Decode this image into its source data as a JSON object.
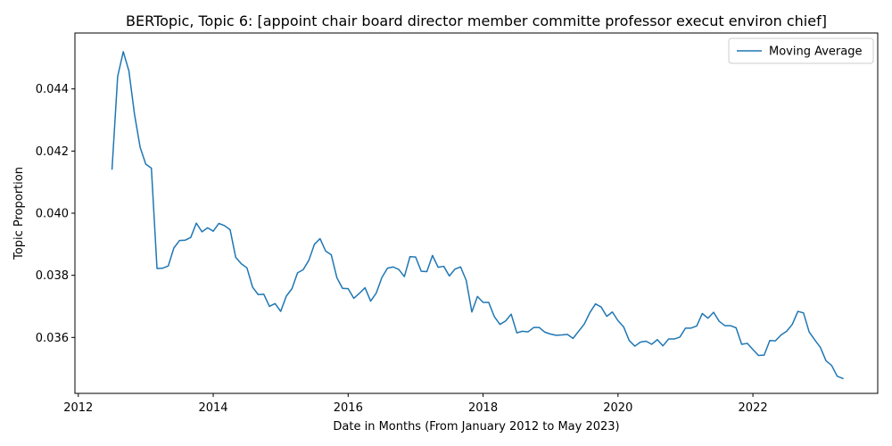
{
  "chart_data": {
    "type": "line",
    "title": "BERTopic, Topic 6: [appoint chair board director member committe professor execut environ chief]",
    "xlabel": "Date in Months (From January 2012 to May 2023)",
    "ylabel": "Topic Proportion",
    "xlim": [
      2011.95,
      2023.85
    ],
    "ylim": [
      0.0342,
      0.0458
    ],
    "xticks": [
      2012,
      2014,
      2016,
      2018,
      2020,
      2022
    ],
    "xtick_labels": [
      "2012",
      "2014",
      "2016",
      "2018",
      "2020",
      "2022"
    ],
    "yticks": [
      0.036,
      0.038,
      0.04,
      0.042,
      0.044
    ],
    "ytick_labels": [
      "0.036",
      "0.038",
      "0.040",
      "0.042",
      "0.044"
    ],
    "grid": false,
    "legend_position": "top-right",
    "line_color": "#1f77b4",
    "series": [
      {
        "name": "Moving Average",
        "x": [
          "2012-07",
          "2012-08",
          "2012-09",
          "2012-10",
          "2012-11",
          "2012-12",
          "2013-01",
          "2013-02",
          "2013-03",
          "2013-04",
          "2013-05",
          "2013-06",
          "2013-07",
          "2013-08",
          "2013-09",
          "2013-10",
          "2013-11",
          "2013-12",
          "2014-01",
          "2014-02",
          "2014-03",
          "2014-04",
          "2014-05",
          "2014-06",
          "2014-07",
          "2014-08",
          "2014-09",
          "2014-10",
          "2014-11",
          "2014-12",
          "2015-01",
          "2015-02",
          "2015-03",
          "2015-04",
          "2015-05",
          "2015-06",
          "2015-07",
          "2015-08",
          "2015-09",
          "2015-10",
          "2015-11",
          "2015-12",
          "2016-01",
          "2016-02",
          "2016-03",
          "2016-04",
          "2016-05",
          "2016-06",
          "2016-07",
          "2016-08",
          "2016-09",
          "2016-10",
          "2016-11",
          "2016-12",
          "2017-01",
          "2017-02",
          "2017-03",
          "2017-04",
          "2017-05",
          "2017-06",
          "2017-07",
          "2017-08",
          "2017-09",
          "2017-10",
          "2017-11",
          "2017-12",
          "2018-01",
          "2018-02",
          "2018-03",
          "2018-04",
          "2018-05",
          "2018-06",
          "2018-07",
          "2018-08",
          "2018-09",
          "2018-10",
          "2018-11",
          "2018-12",
          "2019-01",
          "2019-02",
          "2019-03",
          "2019-04",
          "2019-05",
          "2019-06",
          "2019-07",
          "2019-08",
          "2019-09",
          "2019-10",
          "2019-11",
          "2019-12",
          "2020-01",
          "2020-02",
          "2020-03",
          "2020-04",
          "2020-05",
          "2020-06",
          "2020-07",
          "2020-08",
          "2020-09",
          "2020-10",
          "2020-11",
          "2020-12",
          "2021-01",
          "2021-02",
          "2021-03",
          "2021-04",
          "2021-05",
          "2021-06",
          "2021-07",
          "2021-08",
          "2021-09",
          "2021-10",
          "2021-11",
          "2021-12",
          "2022-01",
          "2022-02",
          "2022-03",
          "2022-04",
          "2022-05",
          "2022-06",
          "2022-07",
          "2022-08",
          "2022-09",
          "2022-10",
          "2022-11",
          "2022-12",
          "2023-01",
          "2023-02",
          "2023-03",
          "2023-04",
          "2023-05"
        ],
        "values": [
          0.04142,
          0.0444,
          0.0452,
          0.04458,
          0.04318,
          0.04212,
          0.04158,
          0.04145,
          0.03822,
          0.03823,
          0.0383,
          0.03888,
          0.03912,
          0.03913,
          0.03922,
          0.03968,
          0.0394,
          0.03953,
          0.03942,
          0.03967,
          0.0396,
          0.03947,
          0.03858,
          0.03837,
          0.03824,
          0.03762,
          0.03738,
          0.03739,
          0.037,
          0.03709,
          0.03684,
          0.03733,
          0.03757,
          0.03808,
          0.03818,
          0.03848,
          0.039,
          0.03918,
          0.03878,
          0.03866,
          0.03792,
          0.03758,
          0.03757,
          0.03726,
          0.03742,
          0.0376,
          0.03717,
          0.03743,
          0.03793,
          0.03823,
          0.03827,
          0.03819,
          0.03796,
          0.0386,
          0.03859,
          0.03813,
          0.03812,
          0.03864,
          0.03826,
          0.03829,
          0.03798,
          0.0382,
          0.03827,
          0.03784,
          0.03682,
          0.03732,
          0.03713,
          0.03713,
          0.03667,
          0.03642,
          0.03653,
          0.03675,
          0.03615,
          0.0362,
          0.03618,
          0.03632,
          0.03632,
          0.03617,
          0.03611,
          0.03607,
          0.03608,
          0.0361,
          0.03597,
          0.0362,
          0.03643,
          0.0368,
          0.03708,
          0.03698,
          0.03668,
          0.03682,
          0.03654,
          0.03634,
          0.0359,
          0.03572,
          0.03585,
          0.03588,
          0.03578,
          0.03593,
          0.03573,
          0.03595,
          0.03595,
          0.03601,
          0.0363,
          0.0363,
          0.03637,
          0.03677,
          0.03662,
          0.03681,
          0.03652,
          0.03638,
          0.03638,
          0.03631,
          0.03578,
          0.03581,
          0.03561,
          0.03542,
          0.03543,
          0.0359,
          0.03589,
          0.03608,
          0.0362,
          0.03642,
          0.03684,
          0.03679,
          0.03618,
          0.03592,
          0.03568,
          0.03525,
          0.0351,
          0.03475,
          0.03468
        ]
      }
    ]
  }
}
